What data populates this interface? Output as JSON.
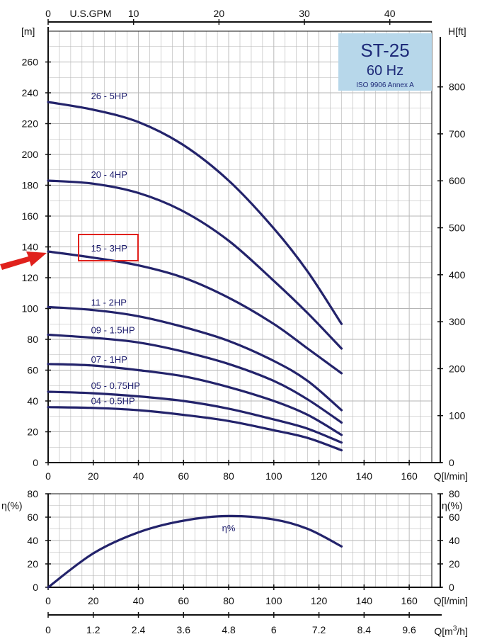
{
  "colors": {
    "curve": "#23236b",
    "grid": "#b5b5b5",
    "axis": "#111111",
    "badge_bg": "#b7d7ea",
    "highlight_box": "#e0211c",
    "arrow": "#e0211c"
  },
  "title_badge": {
    "model": "ST-25",
    "frequency": "60 Hz",
    "standard": "ISO 9906 Annex A"
  },
  "chart_data": [
    {
      "type": "line",
      "panel": "head",
      "x_unit_label": "Q[l/min]",
      "y_unit_label_left": "[m]",
      "y_unit_label_right": "H[ft]",
      "top_axis_label": "U.S.GPM",
      "xlim": [
        0,
        170
      ],
      "ylim": [
        0,
        280
      ],
      "x_ticks": [
        0,
        20,
        40,
        60,
        80,
        100,
        120,
        140,
        160
      ],
      "y_ticks": [
        0,
        20,
        40,
        60,
        80,
        100,
        120,
        140,
        160,
        180,
        200,
        220,
        240,
        260
      ],
      "top_ticks_gpm": [
        0,
        10,
        20,
        30,
        40
      ],
      "right_ticks_ft": [
        0,
        100,
        200,
        300,
        400,
        500,
        600,
        700,
        800
      ],
      "grid": true,
      "highlighted_series": "15 - 3HP",
      "series": [
        {
          "name": "26 - 5HP",
          "label_at": [
            19,
            235
          ],
          "x": [
            0,
            20,
            40,
            60,
            80,
            100,
            115,
            130
          ],
          "y": [
            234,
            229,
            221,
            206,
            183,
            152,
            124,
            90
          ]
        },
        {
          "name": "20 - 4HP",
          "label_at": [
            19,
            184
          ],
          "x": [
            0,
            20,
            40,
            60,
            80,
            100,
            115,
            130
          ],
          "y": [
            183,
            181,
            175,
            163,
            144,
            118,
            97,
            74
          ]
        },
        {
          "name": "15 - 3HP",
          "label_at": [
            19,
            136
          ],
          "x": [
            0,
            20,
            40,
            60,
            80,
            100,
            115,
            130
          ],
          "y": [
            137,
            133,
            128,
            120,
            107,
            90,
            74,
            58
          ]
        },
        {
          "name": "11 - 2HP",
          "label_at": [
            19,
            101
          ],
          "x": [
            0,
            20,
            40,
            60,
            80,
            100,
            115,
            130
          ],
          "y": [
            101,
            99,
            95,
            88,
            79,
            66,
            53,
            34
          ]
        },
        {
          "name": "09 - 1.5HP",
          "label_at": [
            19,
            83
          ],
          "x": [
            0,
            20,
            40,
            60,
            80,
            100,
            115,
            130
          ],
          "y": [
            83,
            81,
            78,
            72,
            64,
            53,
            41,
            26
          ]
        },
        {
          "name": "07 - 1HP",
          "label_at": [
            19,
            64
          ],
          "x": [
            0,
            20,
            40,
            60,
            80,
            100,
            115,
            130
          ],
          "y": [
            64,
            63,
            60,
            56,
            49,
            40,
            31,
            18
          ]
        },
        {
          "name": "05 - 0.75HP",
          "label_at": [
            19,
            47
          ],
          "x": [
            0,
            20,
            40,
            60,
            80,
            100,
            115,
            130
          ],
          "y": [
            46,
            45,
            43,
            40,
            35,
            28,
            22,
            13
          ]
        },
        {
          "name": "04 - 0.5HP",
          "label_at": [
            19,
            37
          ],
          "x": [
            0,
            20,
            40,
            60,
            80,
            100,
            115,
            130
          ],
          "y": [
            36,
            35.5,
            34,
            31,
            27,
            21,
            16,
            8
          ]
        }
      ]
    },
    {
      "type": "line",
      "panel": "efficiency",
      "x_unit_label": "Q[l/min]",
      "y_unit_label": "η(%)",
      "xlim": [
        0,
        170
      ],
      "ylim": [
        0,
        80
      ],
      "x_ticks": [
        0,
        20,
        40,
        60,
        80,
        100,
        120,
        140,
        160
      ],
      "y_ticks": [
        0,
        20,
        40,
        60,
        80
      ],
      "grid": true,
      "series": [
        {
          "name": "η%",
          "label_at": [
            80,
            48
          ],
          "x": [
            0,
            20,
            40,
            60,
            80,
            100,
            115,
            130
          ],
          "y": [
            0,
            29,
            47,
            57,
            61,
            58,
            50,
            35
          ]
        }
      ]
    },
    {
      "type": "axis",
      "panel": "flow-m3h",
      "x_unit_label": "Q[m³/h]",
      "x_unit_text": "Q[m",
      "x_unit_sup": "3",
      "x_unit_tail": "/h]",
      "xlim": [
        0,
        10.2
      ],
      "x_ticks": [
        "0",
        "1.2",
        "2.4",
        "3.6",
        "4.8",
        "6",
        "7.2",
        "8.4",
        "9.6"
      ]
    }
  ]
}
